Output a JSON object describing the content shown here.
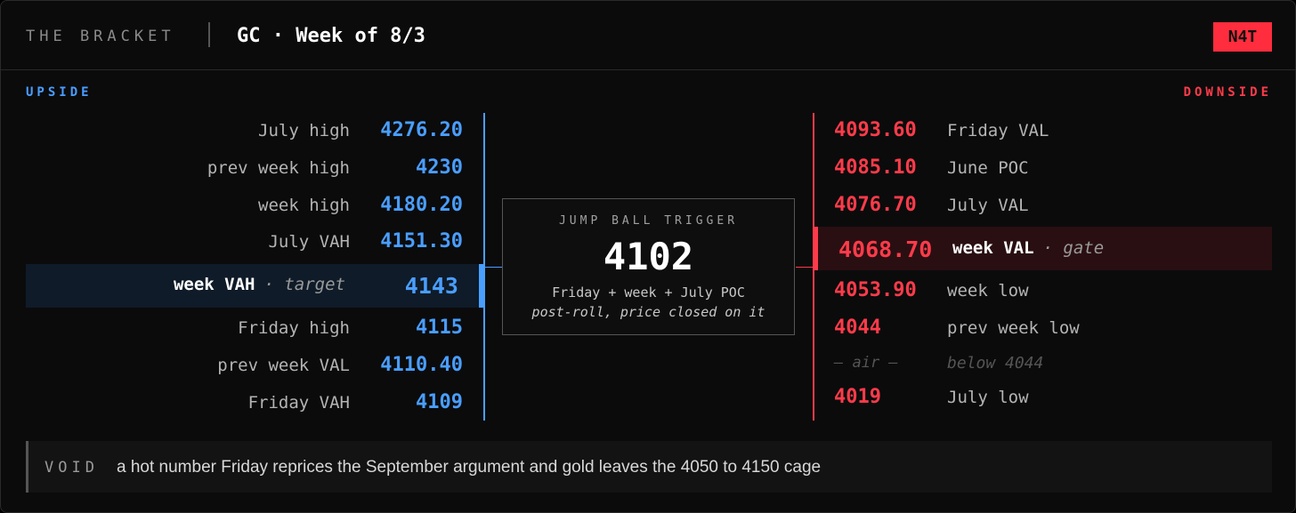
{
  "header": {
    "eyebrow": "THE BRACKET",
    "title": "GC · Week of 8/3",
    "badge": "N4T"
  },
  "upside": {
    "label": "UPSIDE",
    "rows": [
      {
        "label": "July high",
        "value": "4276.20"
      },
      {
        "label": "prev week high",
        "value": "4230"
      },
      {
        "label": "week high",
        "value": "4180.20"
      },
      {
        "label": "July VAH",
        "value": "4151.30"
      },
      {
        "label": "week VAH",
        "tag": "· target",
        "value": "4143",
        "highlight": true
      },
      {
        "label": "Friday high",
        "value": "4115"
      },
      {
        "label": "prev week VAL",
        "value": "4110.40"
      },
      {
        "label": "Friday VAH",
        "value": "4109"
      }
    ]
  },
  "center": {
    "label": "JUMP BALL TRIGGER",
    "value": "4102",
    "note": "Friday + week + July POC",
    "subnote": "post-roll, price closed on it"
  },
  "downside": {
    "label": "DOWNSIDE",
    "rows": [
      {
        "value": "4093.60",
        "label": "Friday VAL"
      },
      {
        "value": "4085.10",
        "label": "June POC"
      },
      {
        "value": "4076.70",
        "label": "July VAL"
      },
      {
        "value": "4068.70",
        "label": "week VAL",
        "tag": "· gate",
        "highlight": true
      },
      {
        "value": "4053.90",
        "label": "week low"
      },
      {
        "value": "4044",
        "label": "prev week low"
      },
      {
        "value": "— air —",
        "label": "below 4044",
        "muted": true
      },
      {
        "value": "4019",
        "label": "July low"
      }
    ]
  },
  "footer": {
    "label": "VOID",
    "text": "a hot number Friday reprices the September argument and gold leaves the 4050 to 4150 cage"
  }
}
